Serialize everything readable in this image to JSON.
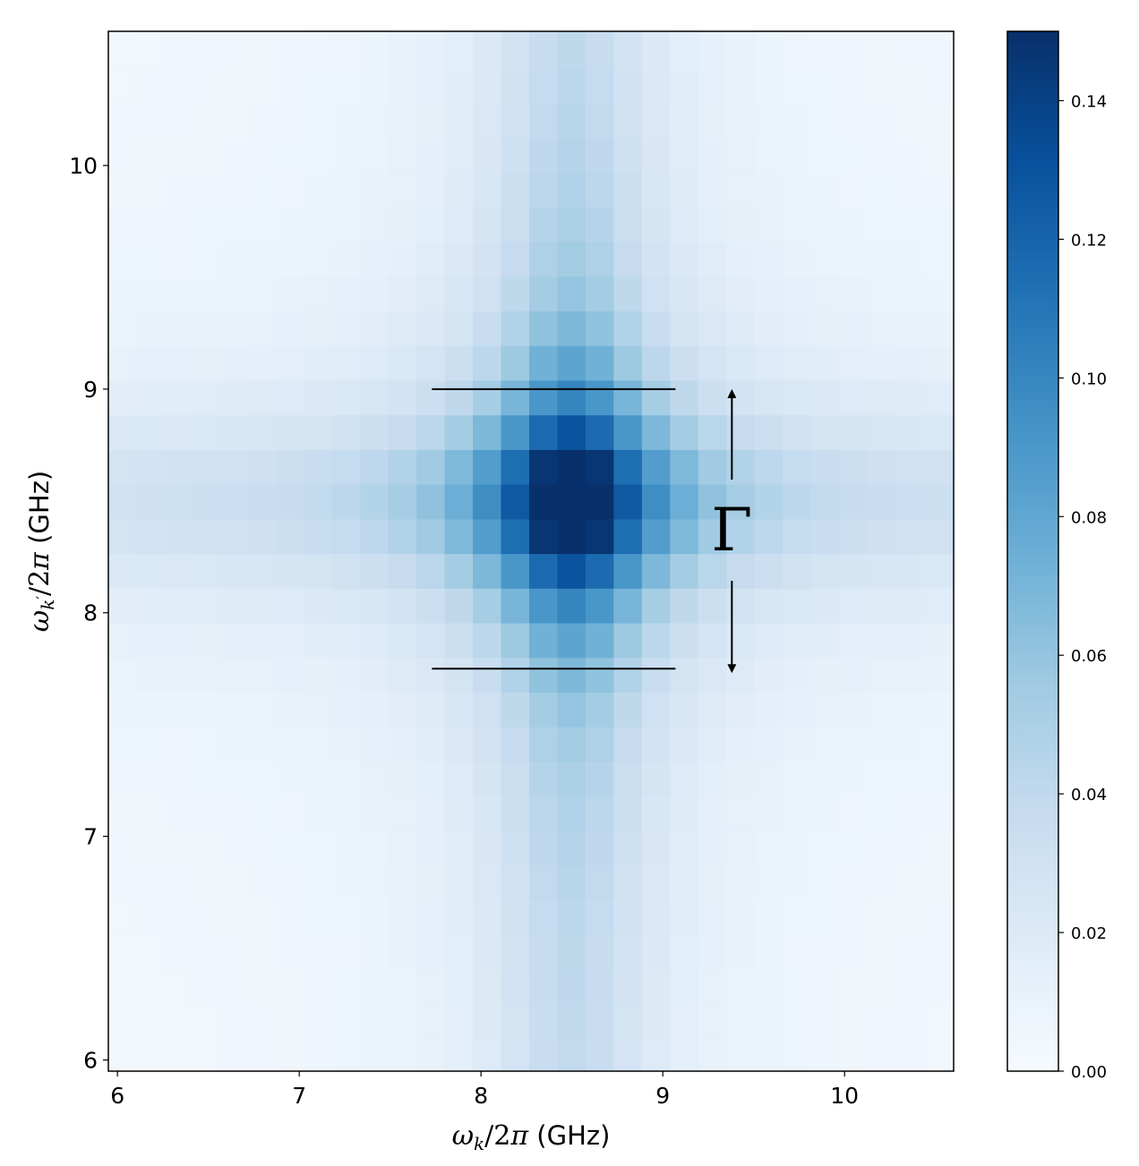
{
  "chart_data": {
    "type": "heatmap",
    "title": "",
    "xlabel": {
      "math": "ω_k/2π",
      "unit": "(GHz)"
    },
    "ylabel": {
      "math": "ω_k′/2π",
      "unit": "(GHz)"
    },
    "xlim": [
      5.95,
      10.6
    ],
    "ylim": [
      5.95,
      10.6
    ],
    "x_ticks": [
      6,
      7,
      8,
      9,
      10
    ],
    "y_ticks": [
      6,
      7,
      8,
      9,
      10
    ],
    "x_tick_labels": [
      "6",
      "7",
      "8",
      "9",
      "10"
    ],
    "y_tick_labels": [
      "6",
      "7",
      "8",
      "9",
      "10"
    ],
    "colormap": "Blues",
    "colorbar": {
      "range": [
        0.0,
        0.15
      ],
      "ticks": [
        0.0,
        0.02,
        0.04,
        0.06,
        0.08,
        0.1,
        0.12,
        0.14
      ],
      "tick_labels": [
        "0.00",
        "0.02",
        "0.04",
        "0.06",
        "0.08",
        "0.10",
        "0.12",
        "0.14"
      ]
    },
    "grid": false,
    "bin_width_ghz": 0.155,
    "peak": {
      "x": 8.42,
      "y": 8.42,
      "value": 0.15
    },
    "annotation": {
      "label": "Γ",
      "line_y_upper": 9.0,
      "line_y_lower": 7.75,
      "line_x_start": 7.73,
      "line_x_end": 9.07,
      "arrow_x": 9.38
    }
  }
}
